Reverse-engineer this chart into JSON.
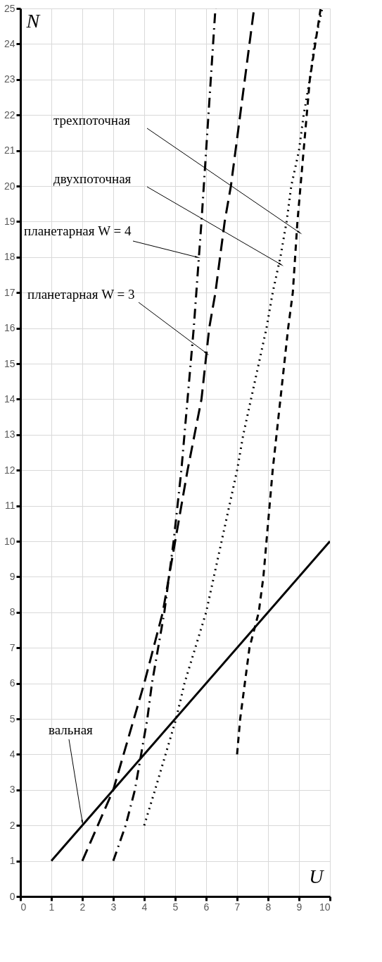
{
  "chart_data": {
    "type": "line",
    "xlabel": "U",
    "ylabel": "N",
    "xlim": [
      0,
      10
    ],
    "ylim": [
      0,
      25
    ],
    "xticks": [
      0,
      1,
      2,
      3,
      4,
      5,
      6,
      7,
      8,
      9,
      10
    ],
    "yticks": [
      0,
      1,
      2,
      3,
      4,
      5,
      6,
      7,
      8,
      9,
      10,
      11,
      12,
      13,
      14,
      15,
      16,
      17,
      18,
      19,
      20,
      21,
      22,
      23,
      24,
      25
    ],
    "grid": true,
    "marker": "none",
    "series": [
      {
        "color": "#000000",
        "line_style": "solid",
        "x": [
          1,
          10
        ],
        "values": [
          1,
          10
        ]
      },
      {
        "color": "#000000",
        "line_style": "longdash",
        "x": [
          2,
          3,
          4,
          4.6,
          5,
          5.4,
          5.85,
          6.1,
          6.3,
          6.6,
          6.8,
          7.55
        ],
        "values": [
          1,
          3,
          6,
          8,
          10,
          12,
          14,
          16,
          17,
          19,
          20,
          25
        ]
      },
      {
        "color": "#000000",
        "line_style": "dashdot",
        "x": [
          3,
          3.4,
          3.7,
          4.1,
          4.25,
          4.65,
          4.95,
          5.2,
          5.4,
          5.6,
          5.85,
          6,
          6.15,
          6.3
        ],
        "values": [
          1,
          2,
          3,
          5,
          6,
          8,
          10,
          12,
          14,
          16,
          19,
          21,
          23,
          25
        ]
      },
      {
        "color": "#000000",
        "line_style": "dotted",
        "x": [
          4,
          4.35,
          5.03,
          5.3,
          5.65,
          6,
          6.25,
          6.5,
          6.75,
          7,
          7.2,
          7.45,
          7.7,
          7.95,
          8.15,
          8.4,
          8.6,
          8.75,
          9,
          9.15,
          9.35,
          9.5,
          9.75
        ],
        "values": [
          2,
          3,
          5,
          6,
          7,
          8,
          9,
          10,
          11,
          12,
          13,
          14,
          15,
          16,
          17,
          18,
          19,
          20,
          21,
          22,
          23,
          24,
          25
        ]
      },
      {
        "color": "#000000",
        "line_style": "dashed",
        "x": [
          7,
          7.1,
          7.4,
          7.7,
          7.85,
          7.95,
          8.15,
          8.4,
          8.65,
          8.8,
          8.95,
          9.15,
          9.35,
          9.7
        ],
        "values": [
          4,
          5,
          7,
          8,
          9,
          10,
          12,
          14,
          16,
          17,
          19,
          21,
          23,
          25
        ]
      }
    ],
    "annotations": [
      {
        "text": "трехпоточная",
        "x": 9,
        "y": 18.7
      },
      {
        "text": "двухпоточная",
        "x": 8.4,
        "y": 17.8
      },
      {
        "text": "планетарная W = 4",
        "x": 5.7,
        "y": 18
      },
      {
        "text": "планетарная W = 3",
        "x": 6,
        "y": 15.3
      },
      {
        "text": "вальная",
        "x": 2,
        "y": 2.1
      }
    ]
  }
}
